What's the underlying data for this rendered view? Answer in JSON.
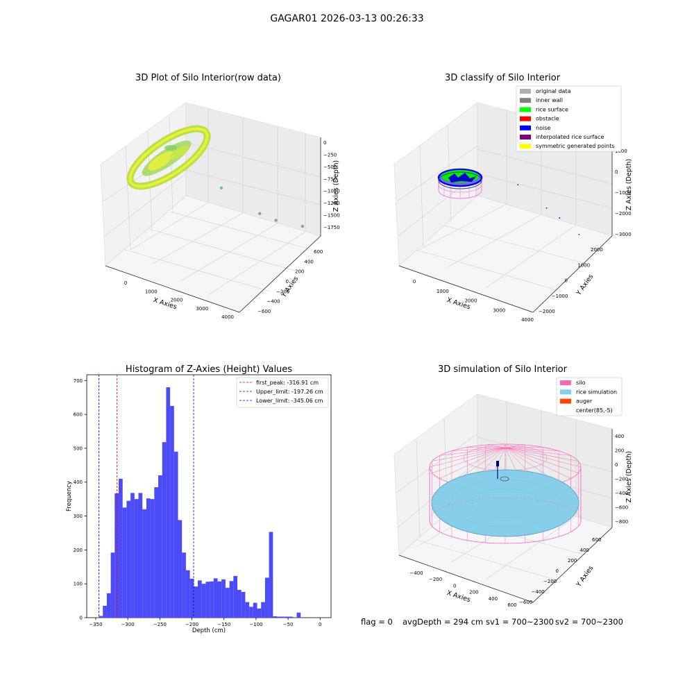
{
  "figure": {
    "suptitle": "GAGAR01 2026-03-13 00:26:33",
    "footer": {
      "flag": "flag = 0",
      "avg_depth": "avgDepth = 294 cm",
      "sv1": "sv1 = 700~2300",
      "sv2": "sv2 = 700~2300"
    }
  },
  "chart_data": [
    {
      "type": "scatter",
      "title": "3D Plot of Silo Interior(row data)",
      "projection": "3d",
      "xlabel": "X Axies",
      "ylabel": "Y Axies",
      "zlabel": "Z Axies (Depth)",
      "x_ticks": [
        "0",
        "1000",
        "2000",
        "3000",
        "4000"
      ],
      "y_ticks": [
        "−600",
        "−400",
        "−200",
        "0",
        "200",
        "400",
        "600"
      ],
      "z_ticks": [
        "0",
        "−250",
        "−500",
        "−750",
        "−1000",
        "−1250",
        "−1500",
        "−1750"
      ],
      "colormap": [
        "#a6d96a",
        "#66bd63",
        "#d9ef3b",
        "#f5f02a"
      ],
      "outliers": [
        {
          "x": 1200,
          "y": -100,
          "z": -900,
          "color": "#5fc98f"
        },
        {
          "x": 2500,
          "y": -250,
          "z": -1450,
          "color": "#999999"
        },
        {
          "x": 3050,
          "y": -300,
          "z": -1600,
          "color": "#999999"
        },
        {
          "x": 3950,
          "y": -400,
          "z": -1750,
          "color": "#999999"
        }
      ]
    },
    {
      "type": "scatter",
      "title": "3D classify of Silo Interior",
      "projection": "3d",
      "xlabel": "X Axies",
      "ylabel": "Y Axies",
      "zlabel": "Z Axies (Depth)",
      "x_ticks": [
        "0",
        "1000",
        "2000",
        "3000",
        "4000"
      ],
      "y_ticks": [
        "−2000",
        "−1000",
        "0",
        "1000",
        "2000"
      ],
      "z_ticks": [
        "1000",
        "0",
        "−1000",
        "−2000",
        "−3000"
      ],
      "legend_position": "top-right",
      "legend": [
        {
          "label": "original data",
          "color": "#b0b0b0"
        },
        {
          "label": "inner wall",
          "color": "#808080"
        },
        {
          "label": "rice surface",
          "color": "#00ff00"
        },
        {
          "label": "obstacle",
          "color": "#ff0000"
        },
        {
          "label": "noise",
          "color": "#0000ff"
        },
        {
          "label": "interpolated rice surface",
          "color": "#800080"
        },
        {
          "label": "symmetric generated points",
          "color": "#ffff00"
        }
      ],
      "noise_points": [
        {
          "x": 1500,
          "y": 0,
          "z": -800
        },
        {
          "x": 2600,
          "y": -200,
          "z": -1500
        },
        {
          "x": 3100,
          "y": -300,
          "z": -1800
        },
        {
          "x": 3850,
          "y": -350,
          "z": -2300
        }
      ]
    },
    {
      "type": "bar",
      "title": "Histogram of Z-Axies (Height) Values",
      "xlabel": "Depth (cm)",
      "ylabel": "Frequency",
      "xlim": [
        -364,
        17
      ],
      "ylim": [
        0,
        717
      ],
      "x_ticks": [
        -350,
        -300,
        -250,
        -200,
        -150,
        -100,
        -50,
        0
      ],
      "y_ticks": [
        0,
        100,
        200,
        300,
        400,
        500,
        600,
        700
      ],
      "bar_color": "#4b4bf8",
      "bins_start": -345.06,
      "bin_width": 6.17,
      "values": [
        5,
        35,
        72,
        192,
        367,
        410,
        325,
        345,
        368,
        350,
        368,
        320,
        352,
        350,
        385,
        420,
        518,
        680,
        625,
        490,
        288,
        192,
        140,
        115,
        92,
        110,
        100,
        106,
        107,
        116,
        107,
        113,
        88,
        108,
        123,
        82,
        76,
        46,
        32,
        44,
        27,
        46,
        118,
        253,
        4,
        3,
        3,
        3,
        3,
        0,
        15
      ],
      "vlines": [
        {
          "label": "first_peak: -316.91 cm",
          "x": -316.91,
          "color": "#ff0000"
        },
        {
          "label": "Upper_limit: -197.26 cm",
          "x": -197.26,
          "color": "#0000ff"
        },
        {
          "label": "Lower_limit: -345.06 cm",
          "x": -345.06,
          "color": "#0000ff"
        }
      ],
      "legend_position": "top-right"
    },
    {
      "type": "scatter",
      "title": "3D simulation of Silo Interior",
      "projection": "3d",
      "xlabel": "X Axies",
      "ylabel": "Y Axies",
      "zlabel": "Z Axies (Depth)",
      "x_ticks": [
        "−400",
        "−200",
        "0",
        "200",
        "400",
        "600"
      ],
      "y_ticks": [
        "−600",
        "−400",
        "−200",
        "0",
        "200",
        "400",
        "600"
      ],
      "z_ticks": [
        "400",
        "200",
        "0",
        "−200",
        "−400",
        "−600",
        "−800"
      ],
      "legend_position": "top-right",
      "legend": [
        {
          "label": "silo",
          "color": "#ff69b4"
        },
        {
          "label": "rice simulation",
          "color": "#87ceeb"
        },
        {
          "label": "auger",
          "color": "#ff4500"
        },
        {
          "label": "center(85,-5)",
          "color": "#ffffff"
        }
      ]
    }
  ]
}
